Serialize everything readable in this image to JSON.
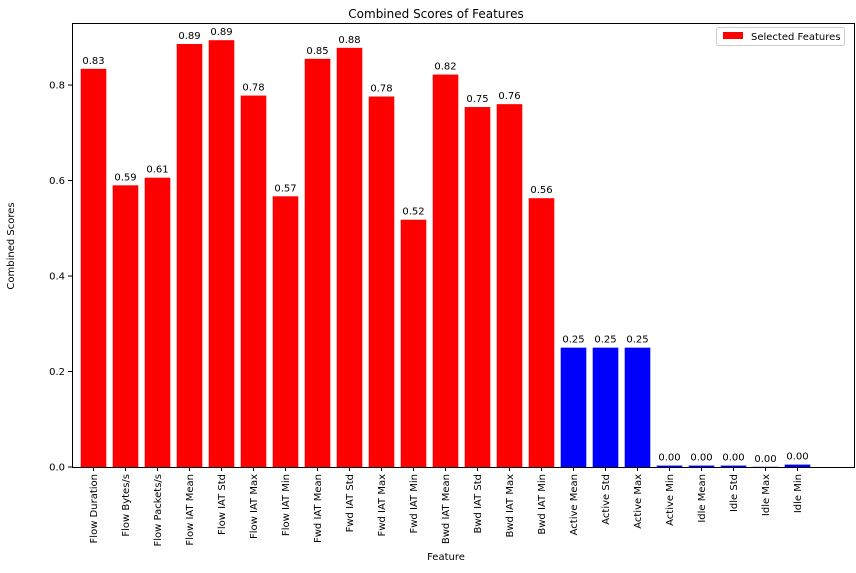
{
  "chart_data": {
    "type": "bar",
    "title": "Combined Scores of Features",
    "xlabel": "Feature",
    "ylabel": "Combined Scores",
    "ylim": [
      0,
      0.93
    ],
    "yticks": [
      "0.0",
      "0.2",
      "0.4",
      "0.6",
      "0.8"
    ],
    "ytick_values": [
      0,
      0.2,
      0.4,
      0.6,
      0.8
    ],
    "grid": false,
    "legend_position": "top-right",
    "legend": [
      {
        "label": "Selected Features",
        "color": "#ff0000"
      }
    ],
    "selected_color": "#ff0000",
    "unselected_color": "#0000ff",
    "categories": [
      "Flow Duration",
      "Flow Bytes/s",
      "Flow Packets/s",
      "Flow IAT Mean",
      "Flow IAT Std",
      "Flow IAT Max",
      "Flow IAT Min",
      "Fwd IAT Mean",
      "Fwd IAT Std",
      "Fwd IAT Max",
      "Fwd IAT Min",
      "Bwd IAT Mean",
      "Bwd IAT Std",
      "Bwd IAT Max",
      "Bwd IAT Min",
      "Active Mean",
      "Active Std",
      "Active Max",
      "Active Min",
      "Idle Mean",
      "Idle Std",
      "Idle Max",
      "Idle Min"
    ],
    "values": [
      0.834,
      0.59,
      0.606,
      0.886,
      0.894,
      0.778,
      0.567,
      0.855,
      0.878,
      0.776,
      0.518,
      0.822,
      0.754,
      0.76,
      0.563,
      0.25,
      0.25,
      0.25,
      0.003,
      0.003,
      0.003,
      0.0005,
      0.005
    ],
    "labels": [
      "0.83",
      "0.59",
      "0.61",
      "0.89",
      "0.89",
      "0.78",
      "0.57",
      "0.85",
      "0.88",
      "0.78",
      "0.52",
      "0.82",
      "0.75",
      "0.76",
      "0.56",
      "0.25",
      "0.25",
      "0.25",
      "0.00",
      "0.00",
      "0.00",
      "0.00",
      "0.00"
    ],
    "selected": [
      true,
      true,
      true,
      true,
      true,
      true,
      true,
      true,
      true,
      true,
      true,
      true,
      true,
      true,
      true,
      false,
      false,
      false,
      false,
      false,
      false,
      false,
      false
    ]
  }
}
